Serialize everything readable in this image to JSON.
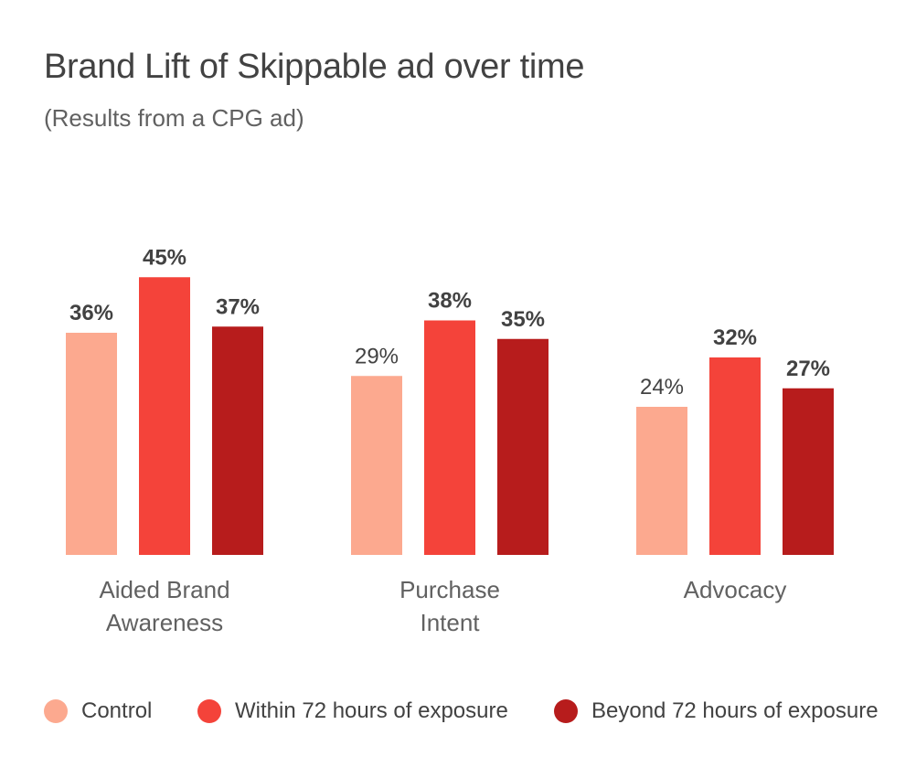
{
  "chart_data": {
    "type": "bar",
    "title": "Brand Lift of Skippable ad over time",
    "subtitle": "(Results from a CPG ad)",
    "categories": [
      [
        "Aided Brand",
        "Awareness"
      ],
      [
        "Purchase",
        "Intent"
      ],
      [
        "Advocacy"
      ]
    ],
    "series": [
      {
        "name": "Control",
        "color": "#fca98f",
        "values": [
          36,
          29,
          24
        ],
        "labels": [
          "36%",
          "29%",
          "24%"
        ]
      },
      {
        "name": "Within 72 hours of exposure",
        "color": "#f4433a",
        "values": [
          45,
          38,
          32
        ],
        "labels": [
          "45%",
          "38%",
          "32%"
        ]
      },
      {
        "name": "Beyond 72 hours of exposure",
        "color": "#b71c1c",
        "values": [
          37,
          35,
          27
        ],
        "labels": [
          "37%",
          "35%",
          "27%"
        ]
      }
    ],
    "legend_position": "bottom",
    "grid": false
  }
}
